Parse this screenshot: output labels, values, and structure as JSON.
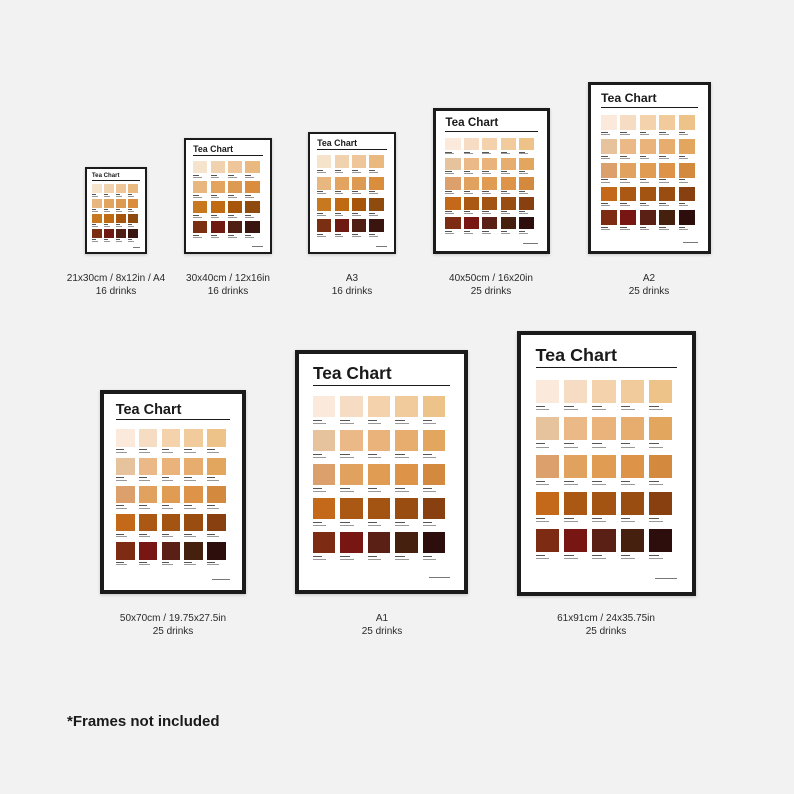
{
  "poster_title": "Tea Chart",
  "variants": [
    {
      "size": "21x30cm / 8x12in / A4",
      "count": "16 drinks"
    },
    {
      "size": "30x40cm / 12x16in",
      "count": "16 drinks"
    },
    {
      "size": "A3",
      "count": "16 drinks"
    },
    {
      "size": "40x50cm / 16x20in",
      "count": "25 drinks"
    },
    {
      "size": "A2",
      "count": "25 drinks"
    },
    {
      "size": "50x70cm / 19.75x27.5in",
      "count": "25 drinks"
    },
    {
      "size": "A1",
      "count": "25 drinks"
    },
    {
      "size": "61x91cm / 24x35.75in",
      "count": "25 drinks"
    }
  ],
  "footnote": "*Frames not included",
  "colors": {
    "background": "#f2f2f2",
    "frame": "#1b1b1b",
    "palette_16": [
      "#f6e3cc",
      "#f1d2ae",
      "#eec69a",
      "#eab97f",
      "#e8b780",
      "#e3a45f",
      "#dd9a52",
      "#d98d3d",
      "#c8781e",
      "#c06a12",
      "#a8550c",
      "#8f4a0e",
      "#7a2e12",
      "#6e1a12",
      "#4e1f12",
      "#3a140e"
    ],
    "palette_25": [
      "#fbeadc",
      "#f6dcc2",
      "#f3d2ac",
      "#f1cb9c",
      "#eec38a",
      "#e6c39d",
      "#eab987",
      "#e9b37b",
      "#e7ad6e",
      "#e3a65e",
      "#dca06c",
      "#e1a260",
      "#e19c54",
      "#dd9448",
      "#d48a3e",
      "#c4691a",
      "#ac5815",
      "#a35413",
      "#9a4d10",
      "#884011",
      "#7d2b12",
      "#781614",
      "#5a2015",
      "#46200f",
      "#2e0e0c"
    ]
  }
}
